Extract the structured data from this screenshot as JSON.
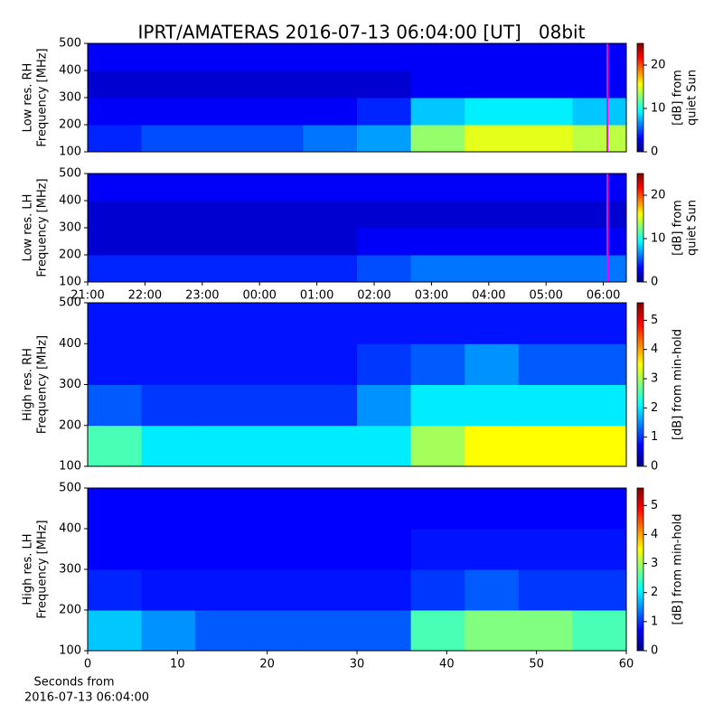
{
  "title": "IPRT/AMATERAS 2016-07-13 06:04:00 [UT]   08bit",
  "chart_data": [
    {
      "type": "heatmap",
      "ylabel": [
        "Low res. RH",
        "Frequency [MHz]"
      ],
      "xlim": [
        21,
        30.4
      ],
      "ylim": [
        100,
        500
      ],
      "yticks": [
        100,
        200,
        300,
        400,
        500
      ],
      "now_line": {
        "x": 30.07,
        "color": "#ff00ff"
      },
      "colorbar": {
        "label": [
          "[dB] from",
          "quiet Sun"
        ],
        "zlim": [
          0,
          25
        ],
        "zticks": [
          0,
          10,
          20
        ]
      },
      "z": [
        [
          4,
          5,
          5,
          5,
          6,
          7,
          13,
          15,
          15,
          14
        ],
        [
          3,
          3,
          3,
          3,
          3,
          4,
          8,
          9,
          9,
          8
        ],
        [
          2,
          2,
          2,
          2,
          2,
          2,
          3,
          3,
          3,
          3
        ],
        [
          3,
          3,
          3,
          3,
          3,
          3,
          3,
          3,
          3,
          3
        ]
      ]
    },
    {
      "type": "heatmap",
      "ylabel": [
        "Low res. LH",
        "Frequency [MHz]"
      ],
      "xlim": [
        21,
        30.4
      ],
      "ylim": [
        100,
        500
      ],
      "yticks": [
        100,
        200,
        300,
        400,
        500
      ],
      "xticks": [
        {
          "value": 21,
          "label": "21:00"
        },
        {
          "value": 22,
          "label": "22:00"
        },
        {
          "value": 23,
          "label": "23:00"
        },
        {
          "value": 24,
          "label": "00:00"
        },
        {
          "value": 25,
          "label": "01:00"
        },
        {
          "value": 26,
          "label": "02:00"
        },
        {
          "value": 27,
          "label": "03:00"
        },
        {
          "value": 28,
          "label": "04:00"
        },
        {
          "value": 29,
          "label": "05:00"
        },
        {
          "value": 30,
          "label": "06:00"
        }
      ],
      "now_line": {
        "x": 30.07,
        "color": "#ff00ff"
      },
      "colorbar": {
        "label": [
          "[dB] from",
          "quiet Sun"
        ],
        "zlim": [
          0,
          25
        ],
        "zticks": [
          0,
          10,
          20
        ]
      },
      "z": [
        [
          4,
          4,
          4,
          4,
          4,
          5,
          6,
          6,
          6,
          6
        ],
        [
          2,
          2,
          2,
          2,
          2,
          3,
          3,
          3,
          3,
          3
        ],
        [
          2,
          2,
          2,
          2,
          2,
          2,
          2,
          2,
          2,
          2
        ],
        [
          3,
          3,
          3,
          3,
          3,
          3,
          3,
          3,
          3,
          3
        ]
      ]
    },
    {
      "type": "heatmap",
      "ylabel": [
        "High res. RH",
        "Frequency [MHz]"
      ],
      "xlim": [
        0,
        60
      ],
      "ylim": [
        100,
        500
      ],
      "yticks": [
        100,
        200,
        300,
        400,
        500
      ],
      "colorbar": {
        "label": [
          "[dB] from min-hold"
        ],
        "zlim": [
          0,
          5.6
        ],
        "zticks": [
          0,
          1,
          2,
          3,
          4,
          5
        ]
      },
      "z": [
        [
          2.5,
          2,
          2,
          2,
          2,
          2,
          3,
          3.5,
          3.5,
          3.5
        ],
        [
          1.2,
          1,
          1,
          1,
          1,
          1.5,
          2,
          2,
          2,
          2
        ],
        [
          0.8,
          0.8,
          0.8,
          0.8,
          0.8,
          1,
          1.2,
          1.5,
          1.2,
          1.2
        ],
        [
          0.8,
          0.8,
          0.8,
          0.8,
          0.8,
          0.8,
          0.8,
          0.8,
          0.8,
          0.8
        ]
      ]
    },
    {
      "type": "heatmap",
      "ylabel": [
        "High res. LH",
        "Frequency [MHz]"
      ],
      "xlim": [
        0,
        60
      ],
      "ylim": [
        100,
        500
      ],
      "yticks": [
        100,
        200,
        300,
        400,
        500
      ],
      "xticks": [
        0,
        10,
        20,
        30,
        40,
        50,
        60
      ],
      "xlabel": [
        "Seconds from",
        "2016-07-13 06:04:00"
      ],
      "colorbar": {
        "label": [
          "[dB] from min-hold"
        ],
        "zlim": [
          0,
          5.6
        ],
        "zticks": [
          0,
          1,
          2,
          3,
          4,
          5
        ]
      },
      "z": [
        [
          1.8,
          1.5,
          1.2,
          1.2,
          1.2,
          1.2,
          2.5,
          2.8,
          2.8,
          2.5
        ],
        [
          0.9,
          0.8,
          0.8,
          0.8,
          0.8,
          0.8,
          1,
          1.2,
          1,
          1
        ],
        [
          0.7,
          0.7,
          0.7,
          0.7,
          0.7,
          0.7,
          0.8,
          0.8,
          0.8,
          0.8
        ],
        [
          0.7,
          0.7,
          0.7,
          0.7,
          0.7,
          0.7,
          0.7,
          0.7,
          0.7,
          0.7
        ]
      ]
    }
  ]
}
